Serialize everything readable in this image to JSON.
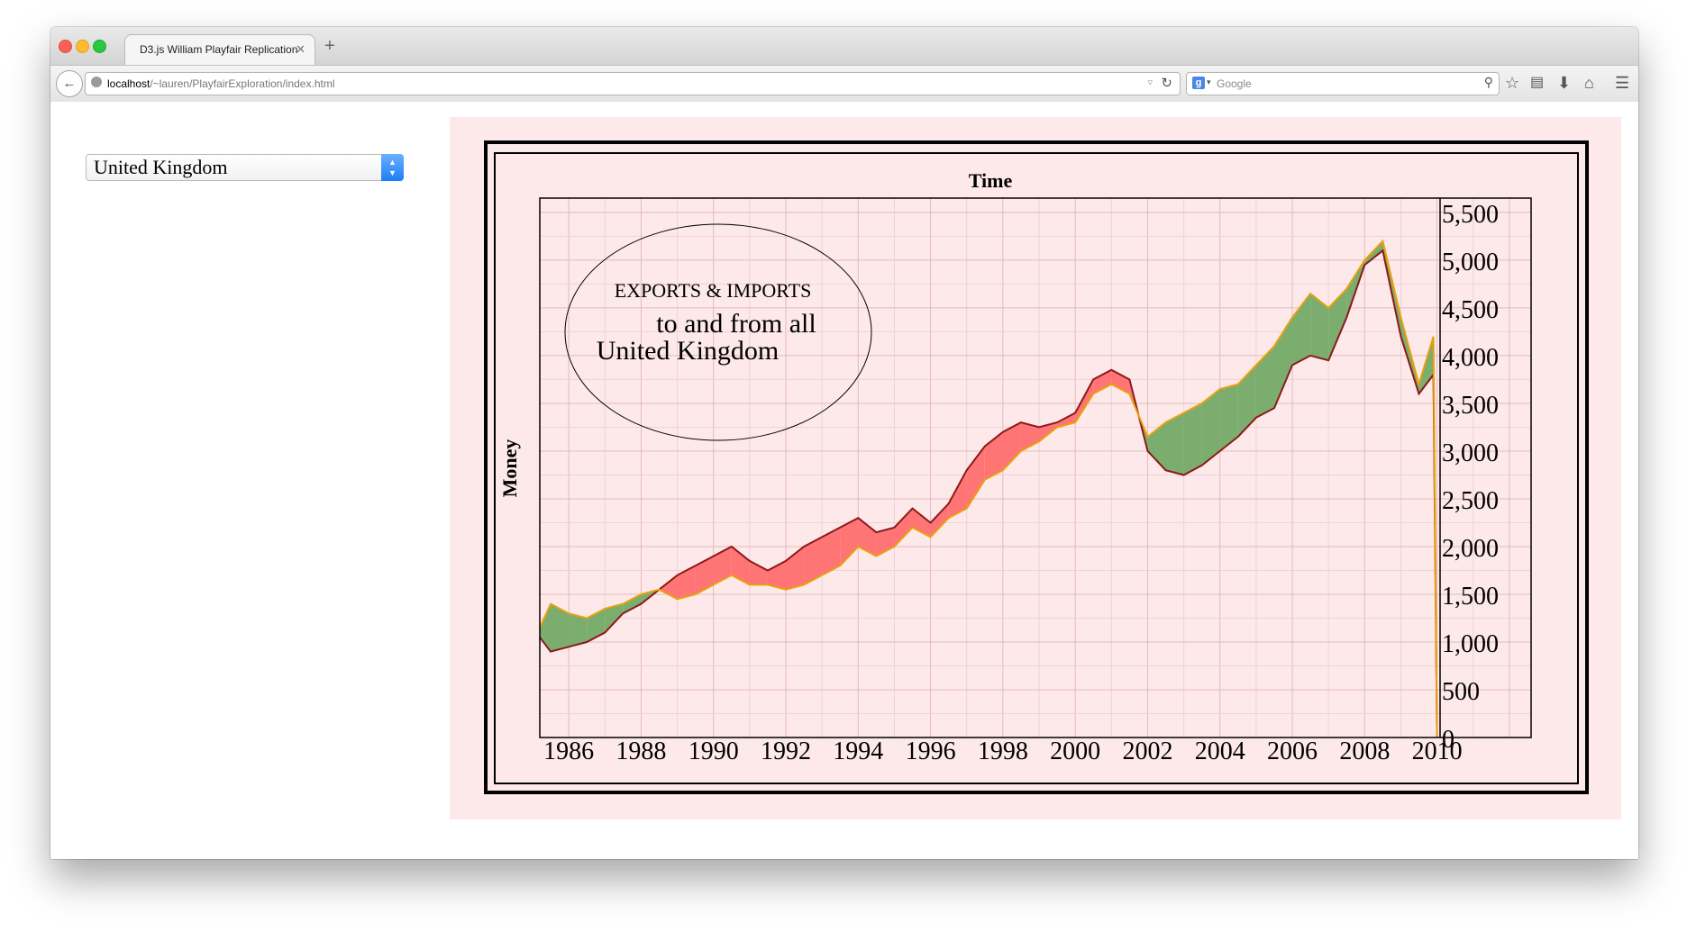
{
  "browser": {
    "tab_title": "D3.js William Playfair Replication",
    "url_host": "localhost",
    "url_path": "/~lauren/PlayfairExploration/index.html",
    "search_placeholder": "Google",
    "search_engine_icon": "google-g-icon"
  },
  "sidebar": {
    "country_select": {
      "selected": "United Kingdom"
    }
  },
  "chart": {
    "top_label": "Time",
    "left_label": "Money",
    "title_line1": "EXPORTS & IMPORTS",
    "title_line2": "to and from all",
    "title_line3": "United Kingdom",
    "colors": {
      "background": "#fee9ea",
      "exports_line": "#e8a20e",
      "imports_line": "#8b1a1a",
      "deficit_fill": "#ff7474",
      "surplus_fill": "#7aad6e"
    }
  },
  "chart_data": {
    "type": "area",
    "title": "EXPORTS & IMPORTS to and from all United Kingdom",
    "xlabel": "Time",
    "ylabel": "Money",
    "x_ticks": [
      "1986",
      "1988",
      "1990",
      "1992",
      "1994",
      "1996",
      "1998",
      "2000",
      "2002",
      "2004",
      "2006",
      "2008",
      "2010"
    ],
    "y_ticks": [
      "0",
      "500",
      "1,000",
      "1,500",
      "2,000",
      "2,500",
      "3,000",
      "3,500",
      "4,000",
      "4,500",
      "5,000",
      "5,500"
    ],
    "xlim": [
      1985.2,
      2012.6
    ],
    "ylim": [
      0,
      5650
    ],
    "grid": true,
    "x": [
      1985.2,
      1985.5,
      1986.0,
      1986.5,
      1987.0,
      1987.5,
      1988.0,
      1988.5,
      1989.0,
      1989.5,
      1990.0,
      1990.5,
      1991.0,
      1991.5,
      1992.0,
      1992.5,
      1993.0,
      1993.5,
      1994.0,
      1994.5,
      1995.0,
      1995.5,
      1996.0,
      1996.5,
      1997.0,
      1997.5,
      1998.0,
      1998.5,
      1999.0,
      1999.5,
      2000.0,
      2000.5,
      2001.0,
      2001.5,
      2002.0,
      2002.5,
      2003.0,
      2003.5,
      2004.0,
      2004.5,
      2005.0,
      2005.5,
      2006.0,
      2006.5,
      2007.0,
      2007.5,
      2008.0,
      2008.5,
      2009.0,
      2009.5,
      2009.9,
      2010.0
    ],
    "series": [
      {
        "name": "Exports",
        "values": [
          1150,
          1400,
          1300,
          1250,
          1350,
          1400,
          1500,
          1550,
          1450,
          1500,
          1600,
          1700,
          1600,
          1600,
          1550,
          1600,
          1700,
          1800,
          2000,
          1900,
          2000,
          2200,
          2100,
          2300,
          2400,
          2700,
          2800,
          3000,
          3100,
          3250,
          3300,
          3600,
          3700,
          3600,
          3150,
          3300,
          3400,
          3500,
          3650,
          3700,
          3900,
          4100,
          4400,
          4650,
          4500,
          4700,
          5000,
          5200,
          4400,
          3700,
          4200,
          0
        ]
      },
      {
        "name": "Imports",
        "values": [
          1050,
          900,
          950,
          1000,
          1100,
          1300,
          1400,
          1550,
          1700,
          1800,
          1900,
          2000,
          1850,
          1750,
          1850,
          2000,
          2100,
          2200,
          2300,
          2150,
          2200,
          2400,
          2250,
          2450,
          2800,
          3050,
          3200,
          3300,
          3250,
          3300,
          3400,
          3750,
          3850,
          3750,
          3000,
          2800,
          2750,
          2850,
          3000,
          3150,
          3350,
          3450,
          3900,
          4000,
          3950,
          4400,
          4950,
          5100,
          4200,
          3600,
          3800,
          0
        ]
      }
    ]
  }
}
